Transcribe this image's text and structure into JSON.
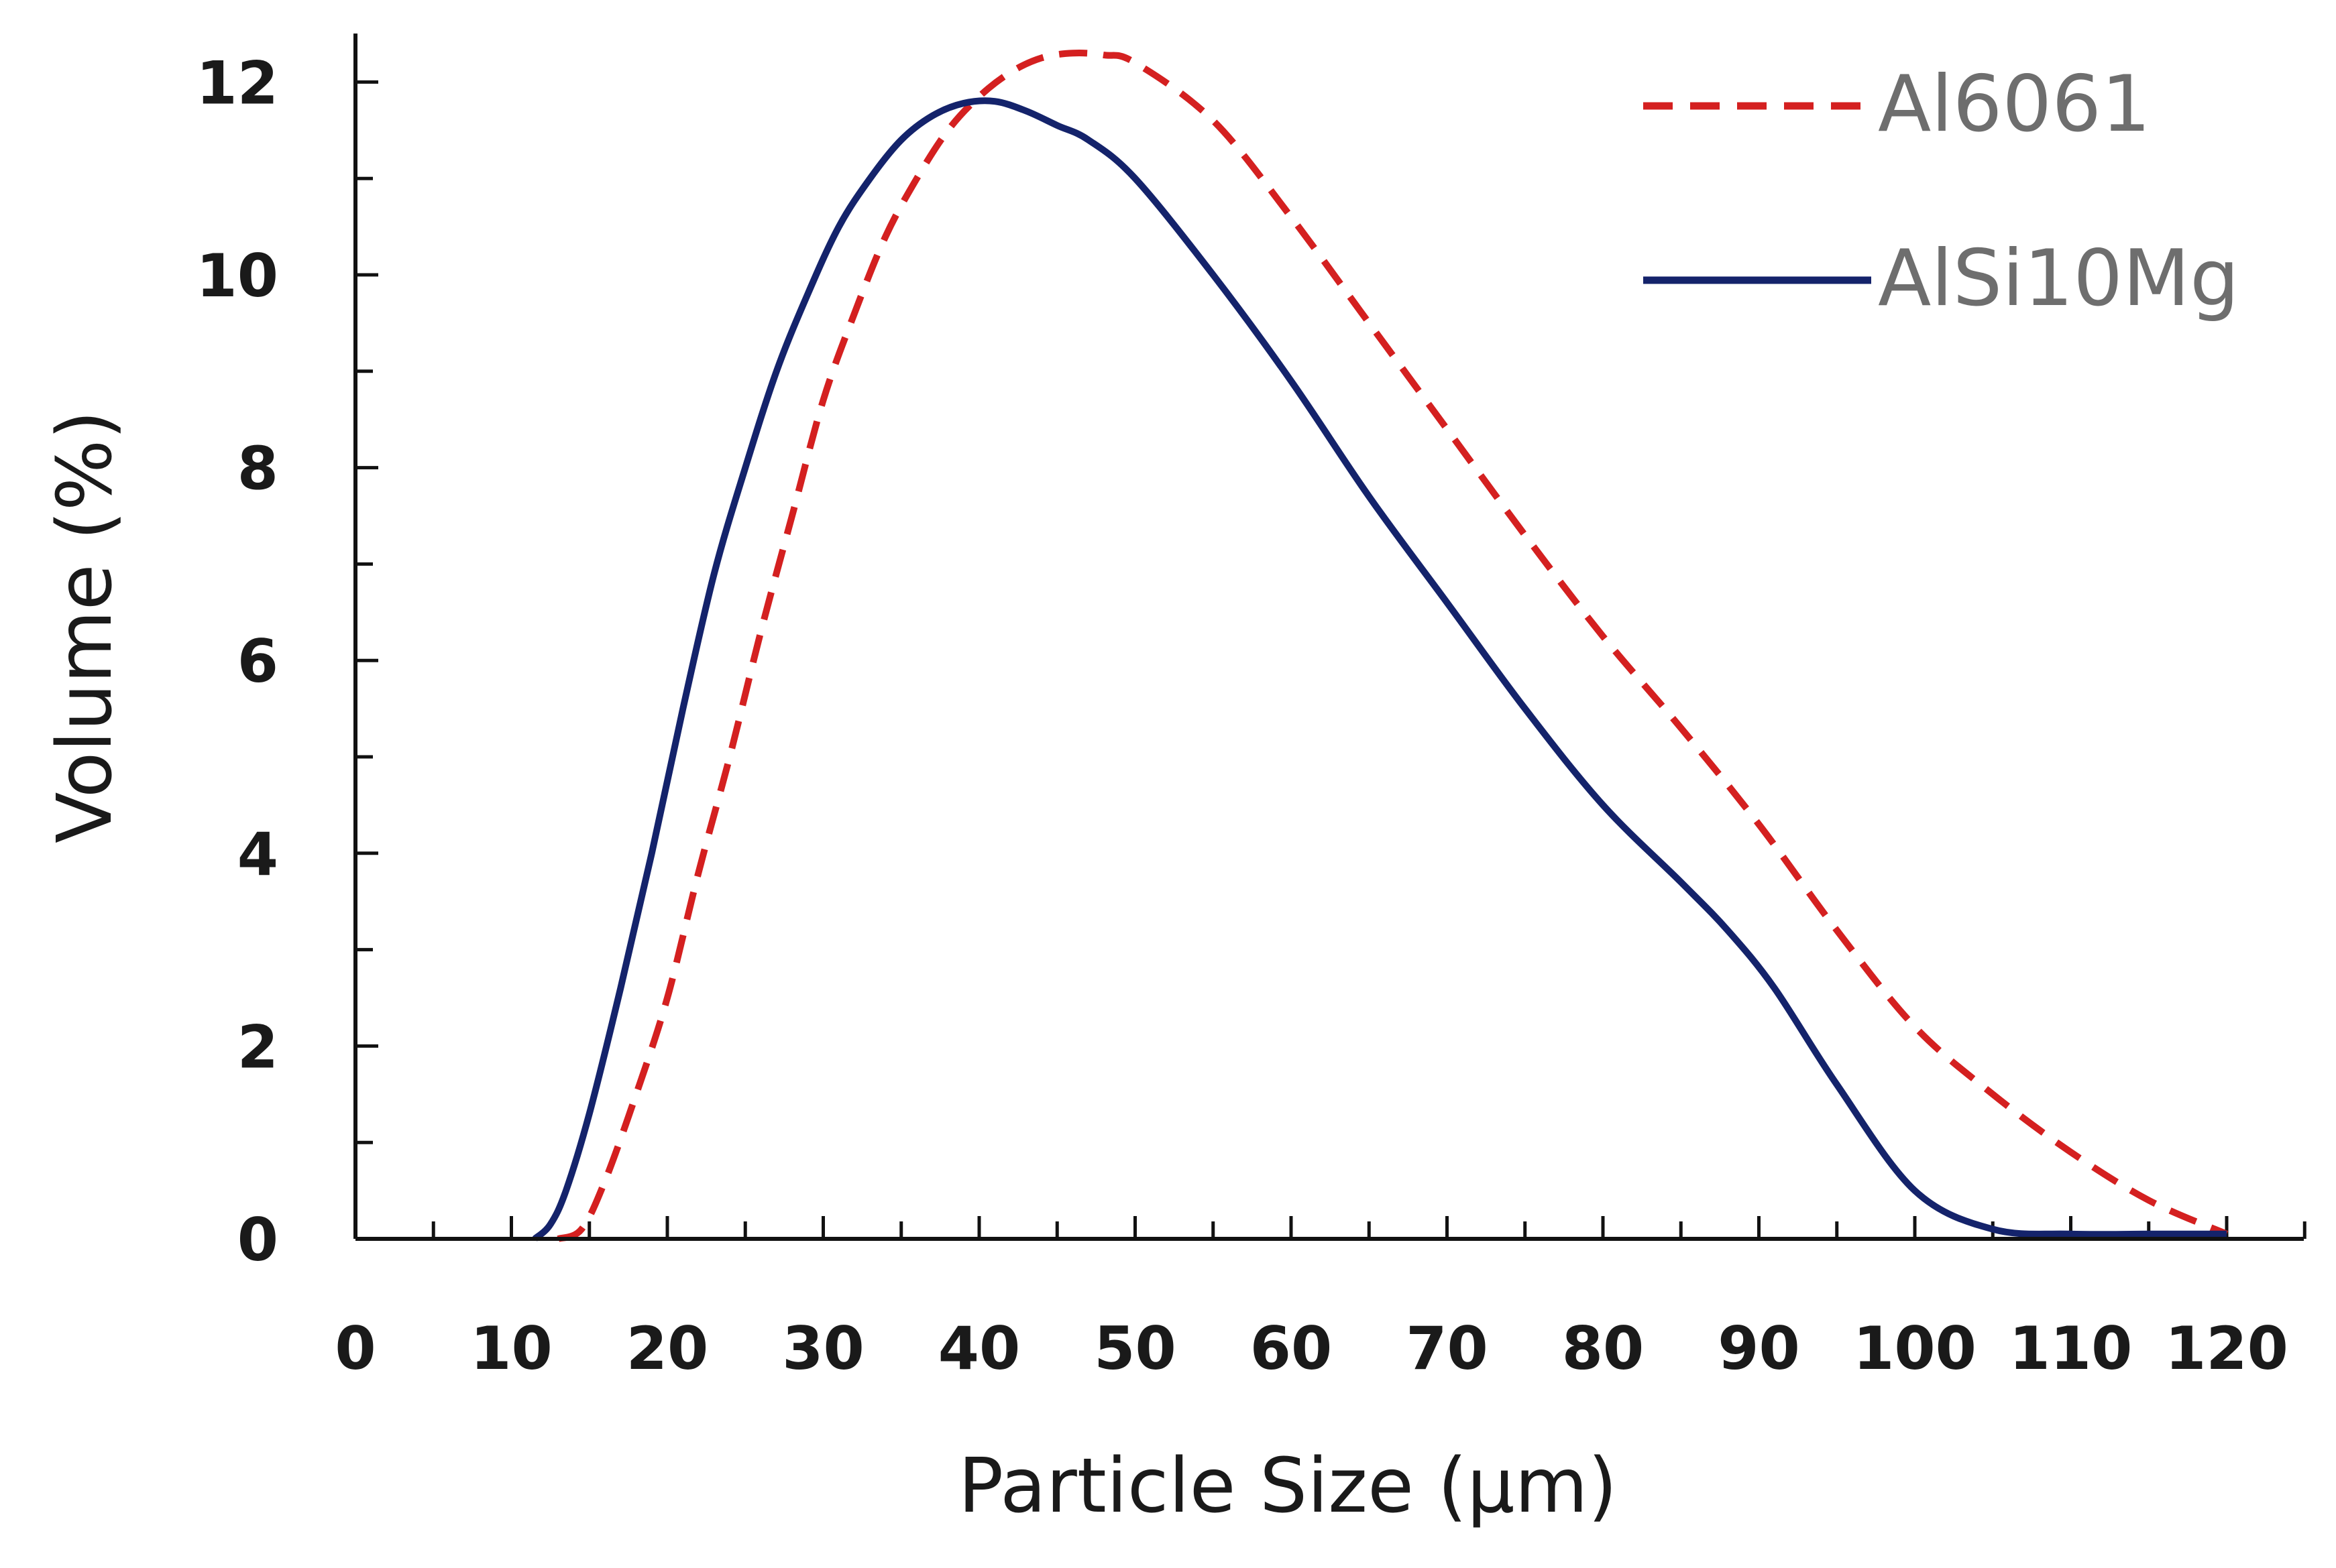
{
  "chart_data": {
    "type": "line",
    "xlabel": "Particle Size  (µm)",
    "ylabel": "Volume   (%)",
    "xlim": [
      0,
      125
    ],
    "ylim": [
      0,
      12
    ],
    "x_ticks": [
      "0",
      "10",
      "20",
      "30",
      "40",
      "50",
      "60",
      "70",
      "80",
      "90",
      "100",
      "110",
      "120"
    ],
    "y_ticks": [
      "0",
      "2",
      "4",
      "6",
      "8",
      "10",
      "12"
    ],
    "x_tick_values": [
      0,
      10,
      20,
      30,
      40,
      50,
      60,
      70,
      80,
      90,
      100,
      110,
      120
    ],
    "y_tick_values": [
      0,
      2,
      4,
      6,
      8,
      10,
      12
    ],
    "x_minor_step": 5,
    "y_minor_step": 1,
    "legend_position": "top-right",
    "series": [
      {
        "name": "Al6061",
        "style": "dashed",
        "color": "#d42020",
        "x": [
          13,
          14.5,
          16,
          18,
          20,
          22,
          24,
          26,
          28,
          30,
          32,
          34,
          36,
          38,
          40,
          42,
          44,
          46,
          48,
          50,
          55,
          60,
          65,
          70,
          75,
          80,
          85,
          90,
          95,
          100,
          105,
          110,
          115,
          120
        ],
        "y": [
          0,
          0.1,
          0.6,
          1.5,
          2.5,
          3.8,
          5.0,
          6.3,
          7.5,
          8.7,
          9.6,
          10.4,
          11.0,
          11.5,
          11.85,
          12.1,
          12.25,
          12.3,
          12.28,
          12.2,
          11.6,
          10.6,
          9.5,
          8.4,
          7.3,
          6.25,
          5.3,
          4.3,
          3.2,
          2.2,
          1.5,
          0.9,
          0.4,
          0.05
        ]
      },
      {
        "name": "AlSi10Mg",
        "style": "solid",
        "color": "#14236b",
        "x": [
          11.5,
          12.5,
          13.5,
          15,
          17,
          19,
          21,
          23,
          25,
          27,
          29,
          31,
          33,
          35,
          37,
          39,
          41,
          43,
          45,
          47,
          50,
          55,
          60,
          65,
          70,
          75,
          80,
          85,
          88,
          91,
          95,
          100,
          105,
          110,
          115,
          120
        ],
        "y": [
          0,
          0.15,
          0.5,
          1.3,
          2.6,
          4.0,
          5.5,
          6.9,
          8.0,
          9.0,
          9.8,
          10.5,
          11.0,
          11.4,
          11.65,
          11.78,
          11.8,
          11.7,
          11.55,
          11.4,
          11.0,
          10.0,
          8.9,
          7.7,
          6.6,
          5.5,
          4.5,
          3.7,
          3.2,
          2.6,
          1.6,
          0.5,
          0.1,
          0.05,
          0.05,
          0.05
        ]
      }
    ]
  }
}
